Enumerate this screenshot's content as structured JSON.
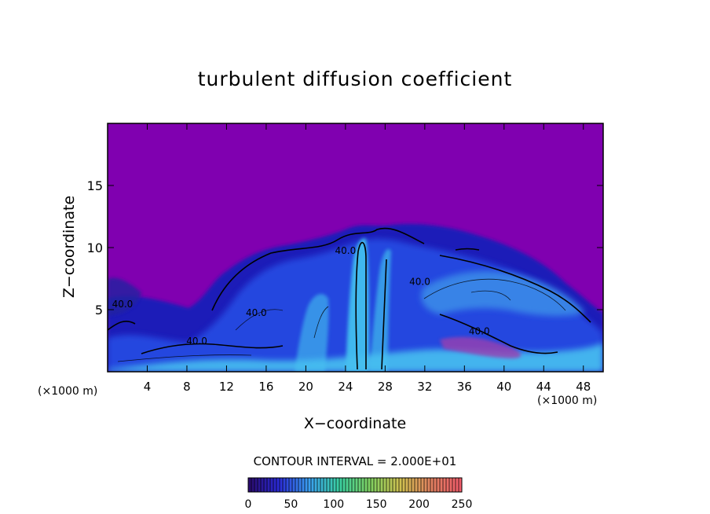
{
  "chart_data": {
    "type": "heatmap",
    "title": "turbulent diffusion coefficient",
    "xlabel": "X−coordinate",
    "ylabel": "Z−coordinate",
    "x_unit_left": "(×1000 m)",
    "x_unit_right": "(×1000 m)",
    "xlim": [
      0,
      50
    ],
    "ylim": [
      0,
      20
    ],
    "x_ticks": [
      4,
      8,
      12,
      16,
      20,
      24,
      28,
      32,
      36,
      40,
      44,
      48
    ],
    "y_ticks": [
      5,
      10,
      15
    ],
    "contour_interval_text": "CONTOUR INTERVAL =  2.000E+01",
    "contour_labels": [
      {
        "text": "40.0",
        "x": 1.5,
        "y": 5.2
      },
      {
        "text": "40.0",
        "x": 15.0,
        "y": 4.5
      },
      {
        "text": "40.0",
        "x": 9.0,
        "y": 2.2
      },
      {
        "text": "40.0",
        "x": 24.0,
        "y": 9.5
      },
      {
        "text": "40.0",
        "x": 31.5,
        "y": 7.0
      },
      {
        "text": "40.0",
        "x": 37.5,
        "y": 3.0
      }
    ],
    "colorbar": {
      "range": [
        0,
        250
      ],
      "ticks": [
        "0",
        "50",
        "100",
        "150",
        "200",
        "250"
      ],
      "colors": [
        "#2a0a6a",
        "#2a2ad6",
        "#3aa0f0",
        "#3ad0a0",
        "#80d060",
        "#d0c050",
        "#e08060",
        "#f05a6a"
      ]
    },
    "background_color": "#8000b0"
  }
}
